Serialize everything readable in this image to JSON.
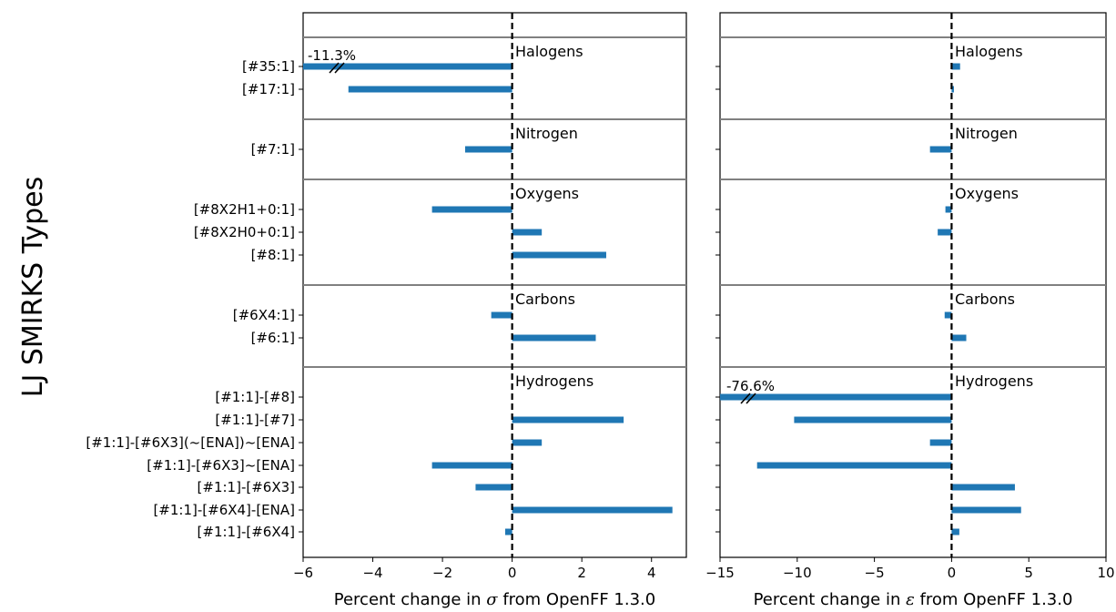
{
  "ylabel": "LJ SMIRKS Types",
  "chart_data": [
    {
      "type": "bar",
      "orientation": "horizontal",
      "xlabel_prefix": "Percent change in ",
      "xlabel_symbol": "σ",
      "xlabel_suffix": " from OpenFF 1.3.0",
      "xlim": [
        -6,
        5
      ],
      "xticks": [
        -6,
        -4,
        -2,
        0,
        2,
        4
      ],
      "xtick_labels": [
        "−6",
        "−4",
        "−2",
        "0",
        "2",
        "4"
      ],
      "bar_color": "#1f77b4",
      "groups": [
        {
          "name": "Halogens",
          "items": [
            {
              "label": "[#35:1]",
              "value": -11.3,
              "broken": true,
              "annotation": "-11.3%"
            },
            {
              "label": "[#17:1]",
              "value": -4.7
            }
          ]
        },
        {
          "name": "Nitrogen",
          "items": [
            {
              "label": "[#7:1]",
              "value": -1.35
            }
          ]
        },
        {
          "name": "Oxygens",
          "items": [
            {
              "label": "[#8X2H1+0:1]",
              "value": -2.3
            },
            {
              "label": "[#8X2H0+0:1]",
              "value": 0.85
            },
            {
              "label": "[#8:1]",
              "value": 2.7
            }
          ]
        },
        {
          "name": "Carbons",
          "items": [
            {
              "label": "[#6X4:1]",
              "value": -0.6
            },
            {
              "label": "[#6:1]",
              "value": 2.4
            }
          ]
        },
        {
          "name": "Hydrogens",
          "items": [
            {
              "label": "[#1:1]-[#8]",
              "value": 0.0
            },
            {
              "label": "[#1:1]-[#7]",
              "value": 3.2
            },
            {
              "label": "[#1:1]-[#6X3](~[ENA])~[ENA]",
              "value": 0.85
            },
            {
              "label": "[#1:1]-[#6X3]~[ENA]",
              "value": -2.3
            },
            {
              "label": "[#1:1]-[#6X3]",
              "value": -1.05
            },
            {
              "label": "[#1:1]-[#6X4]-[ENA]",
              "value": 4.6
            },
            {
              "label": "[#1:1]-[#6X4]",
              "value": -0.2
            }
          ]
        }
      ]
    },
    {
      "type": "bar",
      "orientation": "horizontal",
      "xlabel_prefix": "Percent change in ",
      "xlabel_symbol": "ε",
      "xlabel_suffix": " from OpenFF 1.3.0",
      "xlim": [
        -15,
        10
      ],
      "xticks": [
        -15,
        -10,
        -5,
        0,
        5,
        10
      ],
      "xtick_labels": [
        "−15",
        "−10",
        "−5",
        "0",
        "5",
        "10"
      ],
      "bar_color": "#1f77b4",
      "groups": [
        {
          "name": "Halogens",
          "items": [
            {
              "label": "[#35:1]",
              "value": 0.55
            },
            {
              "label": "[#17:1]",
              "value": 0.15
            }
          ]
        },
        {
          "name": "Nitrogen",
          "items": [
            {
              "label": "[#7:1]",
              "value": -1.4
            }
          ]
        },
        {
          "name": "Oxygens",
          "items": [
            {
              "label": "[#8X2H1+0:1]",
              "value": -0.4
            },
            {
              "label": "[#8X2H0+0:1]",
              "value": -0.9
            },
            {
              "label": "[#8:1]",
              "value": 0.0
            }
          ]
        },
        {
          "name": "Carbons",
          "items": [
            {
              "label": "[#6X4:1]",
              "value": -0.45
            },
            {
              "label": "[#6:1]",
              "value": 0.95
            }
          ]
        },
        {
          "name": "Hydrogens",
          "items": [
            {
              "label": "[#1:1]-[#8]",
              "value": -76.6,
              "broken": true,
              "annotation": "-76.6%"
            },
            {
              "label": "[#1:1]-[#7]",
              "value": -10.2
            },
            {
              "label": "[#1:1]-[#6X3](~[ENA])~[ENA]",
              "value": -1.4
            },
            {
              "label": "[#1:1]-[#6X3]~[ENA]",
              "value": -12.6
            },
            {
              "label": "[#1:1]-[#6X3]",
              "value": 4.1
            },
            {
              "label": "[#1:1]-[#6X4]-[ENA]",
              "value": 4.5
            },
            {
              "label": "[#1:1]-[#6X4]",
              "value": 0.5
            }
          ]
        }
      ]
    }
  ]
}
